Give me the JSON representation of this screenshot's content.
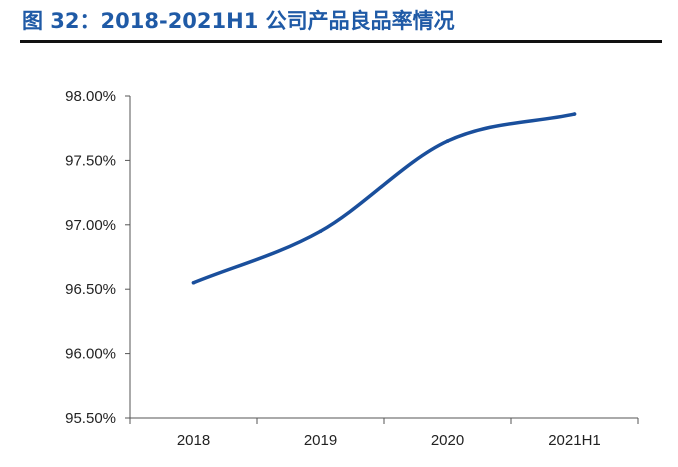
{
  "header": {
    "title": "图 32：2018-2021H1 公司产品良品率情况"
  },
  "chart_data": {
    "type": "line",
    "title": "图 32：2018-2021H1 公司产品良品率情况",
    "categories": [
      "2018",
      "2019",
      "2020",
      "2021H1"
    ],
    "series": [
      {
        "values": [
          96.55,
          96.95,
          97.65,
          97.86
        ],
        "color": "#1a4f9c"
      }
    ],
    "y_tick_labels": [
      "95.50%",
      "96.00%",
      "96.50%",
      "97.00%",
      "97.50%",
      "98.00%"
    ],
    "y_ticks": [
      95.5,
      96.0,
      96.5,
      97.0,
      97.5,
      98.0
    ],
    "ylim": [
      95.5,
      98.0
    ],
    "y_unit": "%",
    "grid": false,
    "legend": "none",
    "smooth": true
  }
}
